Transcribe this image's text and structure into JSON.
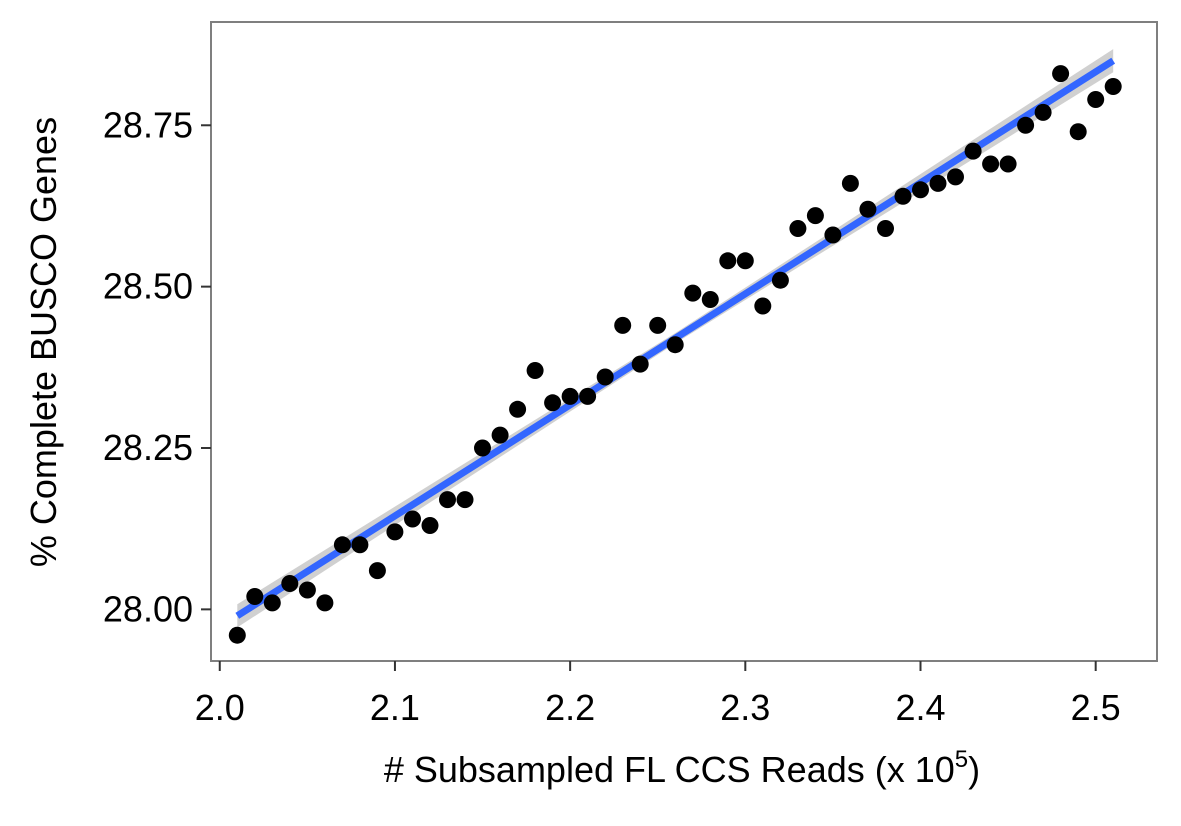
{
  "chart_data": {
    "type": "scatter",
    "xlabel": "# Subsampled FL CCS Reads (x 10",
    "xlabel_sup": "5",
    "xlabel_tail": ")",
    "ylabel": "% Complete BUSCO Genes",
    "xlim": [
      1.995,
      2.535
    ],
    "ylim": [
      27.92,
      28.91
    ],
    "x_ticks": [
      2.0,
      2.1,
      2.2,
      2.3,
      2.4,
      2.5
    ],
    "x_tick_labels": [
      "2.0",
      "2.1",
      "2.2",
      "2.3",
      "2.4",
      "2.5"
    ],
    "y_ticks": [
      28.0,
      28.25,
      28.5,
      28.75
    ],
    "y_tick_labels": [
      "28.00",
      "28.25",
      "28.50",
      "28.75"
    ],
    "grid": false,
    "point_color": "#000000",
    "fit_color": "#3366ff",
    "ci_color": "#c8c8c8",
    "series": [
      {
        "x": [
          2.01,
          2.02,
          2.03,
          2.04,
          2.05,
          2.06,
          2.07,
          2.08,
          2.09,
          2.1,
          2.11,
          2.12,
          2.13,
          2.14,
          2.15,
          2.16,
          2.17,
          2.18,
          2.19,
          2.2,
          2.21,
          2.22,
          2.23,
          2.24,
          2.25,
          2.26,
          2.27,
          2.28,
          2.29,
          2.3,
          2.31,
          2.32,
          2.33,
          2.34,
          2.35,
          2.36,
          2.37,
          2.38,
          2.39,
          2.4,
          2.41,
          2.42,
          2.43,
          2.44,
          2.45,
          2.46,
          2.47,
          2.48,
          2.49,
          2.5,
          2.51
        ],
        "y": [
          27.96,
          28.02,
          28.01,
          28.04,
          28.03,
          28.01,
          28.1,
          28.1,
          28.06,
          28.12,
          28.14,
          28.13,
          28.17,
          28.17,
          28.25,
          28.27,
          28.31,
          28.37,
          28.32,
          28.33,
          28.33,
          28.36,
          28.44,
          28.38,
          28.44,
          28.41,
          28.49,
          28.48,
          28.54,
          28.54,
          28.47,
          28.51,
          28.59,
          28.61,
          28.58,
          28.66,
          28.62,
          28.59,
          28.64,
          28.65,
          28.66,
          28.67,
          28.71,
          28.69,
          28.69,
          28.75,
          28.77,
          28.83,
          28.74,
          28.79,
          28.81
        ]
      }
    ],
    "fit": {
      "x": [
        2.01,
        2.51
      ],
      "y": [
        27.99,
        28.85
      ],
      "ci_halfwidth": [
        0.018,
        0.008,
        0.018
      ]
    }
  }
}
